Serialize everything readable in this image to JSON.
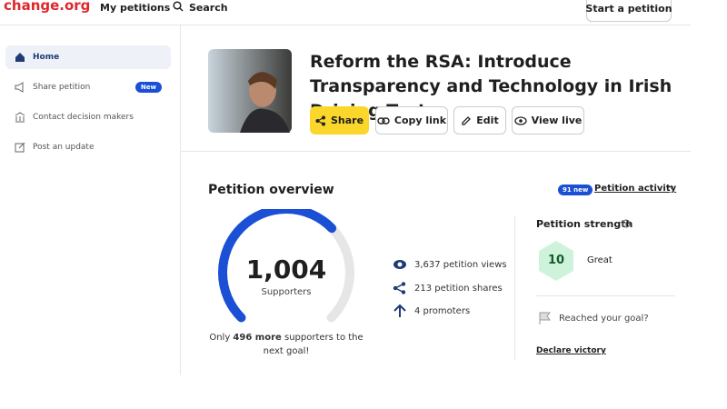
{
  "header": {
    "logo": "change.org",
    "nav": [
      "My petitions",
      "Search"
    ],
    "button": "Start a petition"
  },
  "sidebar": {
    "items": [
      {
        "label": "Home"
      },
      {
        "label": "Share petition",
        "badge": "New"
      },
      {
        "label": "Contact decision makers"
      },
      {
        "label": "Post an update"
      }
    ]
  },
  "petition": {
    "title": "Reform the RSA: Introduce Transparency and Technology in Irish Driving Tests",
    "actions": [
      "Share",
      "Copy link",
      "Edit",
      "View live"
    ]
  },
  "overview": {
    "title": "Petition overview",
    "activity_badge": "91 new",
    "activity_link": "Petition activity",
    "supporters": {
      "value": 1004,
      "label": "1,004"
    },
    "supporters_label": "Supporters",
    "goal_text": {
      "prefix": "Only",
      "remaining": 496,
      "bold_suffix": "more",
      "suffix": "supporters to the next goal!"
    },
    "stats": [
      "3,637 petition views",
      "213 petition shares",
      "4 promoters"
    ]
  },
  "strength": {
    "title": "Petition strength",
    "score": "10",
    "rating": "Great",
    "goal_question": "Reached your goal?",
    "link": "Declare victory"
  }
}
